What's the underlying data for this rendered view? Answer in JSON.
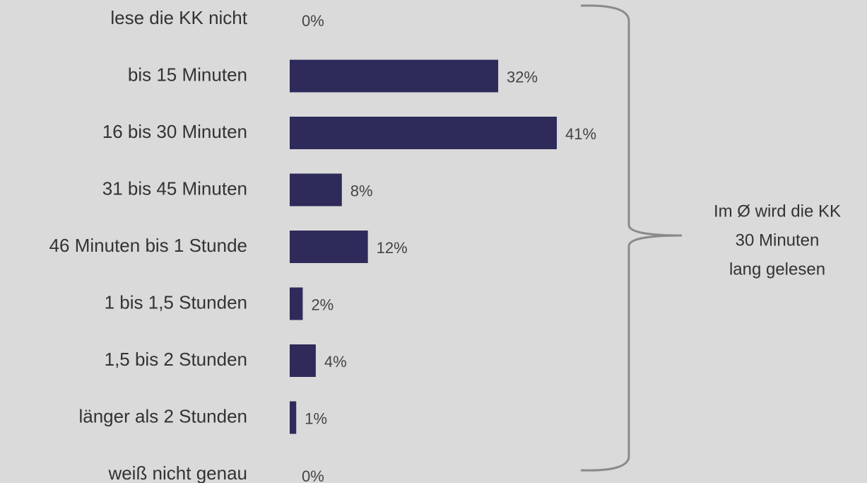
{
  "chart_data": {
    "type": "bar",
    "orientation": "horizontal",
    "categories": [
      "lese die KK nicht",
      "bis 15 Minuten",
      "16 bis 30 Minuten",
      "31 bis 45 Minuten",
      "46 Minuten bis 1 Stunde",
      "1 bis 1,5 Stunden",
      "1,5 bis 2 Stunden",
      "länger als 2 Stunden",
      "weiß nicht genau"
    ],
    "values": [
      0,
      32,
      41,
      8,
      12,
      2,
      4,
      1,
      0
    ],
    "value_labels": [
      "0%",
      "32%",
      "41%",
      "8%",
      "12%",
      "2%",
      "4%",
      "1%",
      "0%"
    ],
    "color": "#2e2a5a",
    "annotation": [
      "Im Ø wird die KK",
      "30 Minuten",
      "lang gelesen"
    ]
  }
}
